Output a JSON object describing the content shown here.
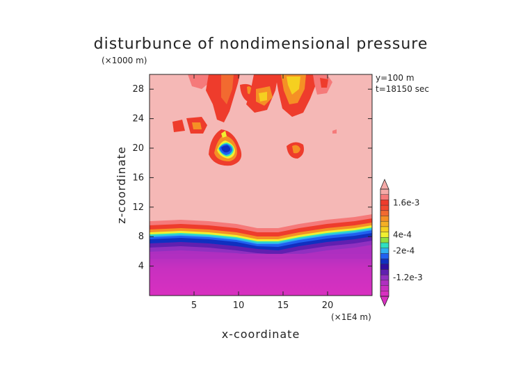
{
  "chart_data": {
    "type": "heatmap",
    "title": "disturbunce of nondimensional pressure",
    "xlabel": "x-coordinate",
    "ylabel": "z-coordinate",
    "x_unit": "(×1E4 m)",
    "z_unit": "(×1000 m)",
    "xlim": [
      0,
      25
    ],
    "ylim": [
      0,
      30
    ],
    "x_ticks": [
      5,
      10,
      15,
      20
    ],
    "y_ticks": [
      4,
      8,
      12,
      16,
      20,
      24,
      28
    ],
    "annotations": [
      "y=100 m",
      "t=18150 sec"
    ],
    "colorbar": {
      "tick_labels": [
        "1.6e-3",
        "4e-4",
        "-2e-4",
        "-1.2e-3"
      ],
      "tick_values": [
        0.0016,
        0.0004,
        -0.0002,
        -0.0012
      ],
      "levels": [
        0.002,
        0.0018,
        0.0016,
        0.0014,
        0.0012,
        0.001,
        0.0008,
        0.0006,
        0.0004,
        0.0002,
        0.0,
        -0.0002,
        -0.0004,
        -0.0006,
        -0.0008,
        -0.001,
        -0.0012,
        -0.0014,
        -0.0016,
        -0.0018
      ],
      "colors": [
        "#f5aaa8",
        "#f57a7a",
        "#ee3c2c",
        "#f24a30",
        "#f26a30",
        "#f59025",
        "#f5b025",
        "#f5d020",
        "#f0f030",
        "#90e040",
        "#30e0c0",
        "#30b0f0",
        "#2060f0",
        "#1030c0",
        "#3010a0",
        "#6020b0",
        "#9030c0",
        "#b030c0",
        "#c830c0",
        "#d830c0"
      ]
    },
    "field_summary": {
      "background_upper": 0.002,
      "background_lower": -0.0018,
      "transition_band_z": [
        7.5,
        10
      ],
      "positive_patches_upper_region": true,
      "negative_core": {
        "x": 8.4,
        "z": 19.6
      }
    }
  }
}
